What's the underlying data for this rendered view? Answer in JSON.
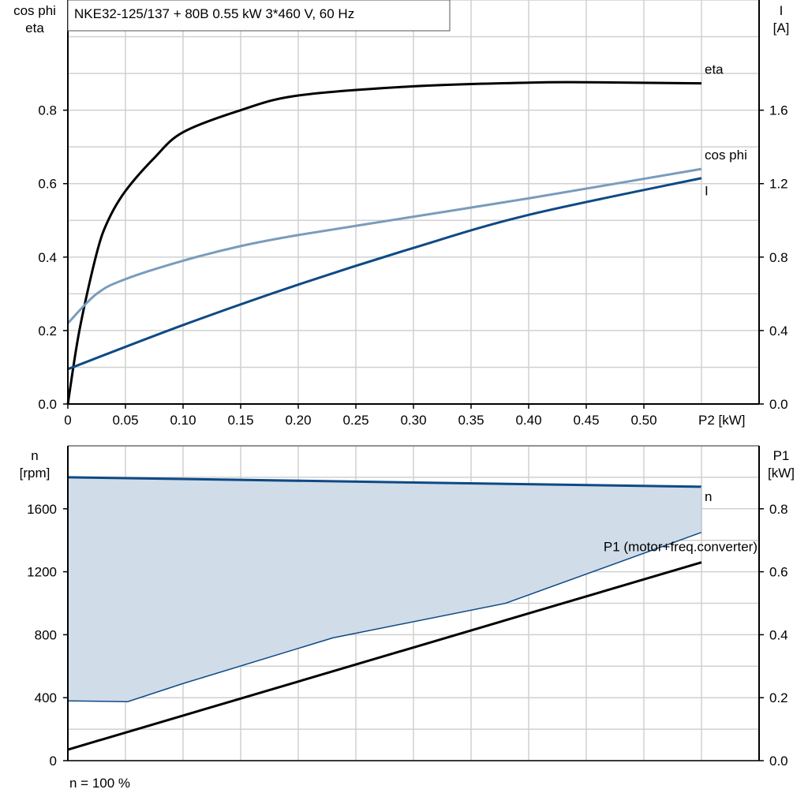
{
  "title": "NKE32-125/137 + 80B   0.55 kW   3*460 V, 60 Hz",
  "footer": "n = 100 %",
  "colors": {
    "eta": "#000000",
    "cos_phi": "#7a9cbc",
    "I": "#0d4a85",
    "n": "#0d4a85",
    "P1": "#000000",
    "fill": "#d0dce8",
    "grid": "#d0d0d0"
  },
  "chart_data": [
    {
      "type": "line",
      "xlabel": "P2 [kW]",
      "x_ticks": [
        "0",
        "0.05",
        "0.10",
        "0.15",
        "0.20",
        "0.25",
        "0.30",
        "0.35",
        "0.40",
        "0.45",
        "0.50"
      ],
      "xlim": [
        0,
        0.6
      ],
      "ylabel_left": [
        "cos phi",
        "eta"
      ],
      "ylim_left": [
        0,
        1.1
      ],
      "y_ticks_left": [
        "0.0",
        "0.2",
        "0.4",
        "0.6",
        "0.8"
      ],
      "ylabel_right": [
        "I",
        "[A]"
      ],
      "ylim_right": [
        0,
        2.2
      ],
      "y_ticks_right": [
        "0.0",
        "0.4",
        "0.8",
        "1.2",
        "1.6"
      ],
      "grid": true,
      "series": [
        {
          "name": "eta",
          "axis": "left",
          "x": [
            0,
            0.01,
            0.025,
            0.035,
            0.05,
            0.075,
            0.1,
            0.15,
            0.2,
            0.3,
            0.4,
            0.45,
            0.55
          ],
          "y": [
            0,
            0.2,
            0.41,
            0.5,
            0.58,
            0.67,
            0.74,
            0.8,
            0.84,
            0.865,
            0.875,
            0.876,
            0.873
          ]
        },
        {
          "name": "cos phi",
          "axis": "left",
          "x": [
            0,
            0.025,
            0.05,
            0.1,
            0.15,
            0.2,
            0.3,
            0.4,
            0.55
          ],
          "y": [
            0.22,
            0.3,
            0.34,
            0.39,
            0.43,
            0.46,
            0.51,
            0.56,
            0.64
          ]
        },
        {
          "name": "I",
          "axis": "right",
          "x": [
            0,
            0.1,
            0.2,
            0.3,
            0.4,
            0.55
          ],
          "y": [
            0.19,
            0.43,
            0.65,
            0.85,
            1.03,
            1.23
          ]
        }
      ]
    },
    {
      "type": "area",
      "xlim": [
        0,
        0.6
      ],
      "ylabel_left": [
        "n",
        "[rpm]"
      ],
      "ylim_left": [
        0,
        2000
      ],
      "y_ticks_left": [
        "0",
        "400",
        "800",
        "1200",
        "1600"
      ],
      "ylabel_right": [
        "P1",
        "[kW]"
      ],
      "ylim_right": [
        0,
        1.0
      ],
      "y_ticks_right": [
        "0.0",
        "0.2",
        "0.4",
        "0.6",
        "0.8"
      ],
      "grid": true,
      "series": [
        {
          "name": "n",
          "axis": "left",
          "x": [
            0,
            0.55
          ],
          "y": [
            1800,
            1740
          ]
        },
        {
          "axis": "left",
          "x": [
            0,
            0.052,
            0.1,
            0.23,
            0.38,
            0.55
          ],
          "y": [
            380,
            375,
            490,
            780,
            1000,
            1450
          ]
        },
        {
          "name": "P1 (motor+freq.converter)",
          "axis": "right",
          "x": [
            0,
            0.55
          ],
          "y": [
            0.035,
            0.63
          ]
        }
      ]
    }
  ]
}
